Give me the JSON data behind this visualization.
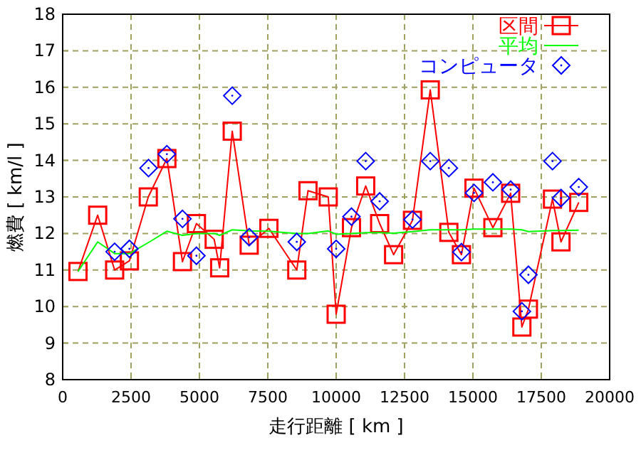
{
  "chart_data": {
    "type": "line",
    "xlabel": "走行距離 [ km ]",
    "ylabel": "燃費 [ km/l ]",
    "xlim": [
      0,
      20000
    ],
    "xticks": [
      0,
      2500,
      5000,
      7500,
      10000,
      12500,
      15000,
      17500,
      20000
    ],
    "ylim": [
      8,
      18
    ],
    "yticks": [
      8,
      9,
      10,
      11,
      12,
      13,
      14,
      15,
      16,
      17,
      18
    ],
    "grid": true,
    "legend": "top right",
    "series": [
      {
        "name": "区間",
        "type": "line",
        "marker": "square",
        "color": "#ff0000",
        "x": [
          560,
          1280,
          1900,
          2440,
          3130,
          3810,
          4380,
          4890,
          5540,
          5740,
          6200,
          6820,
          7540,
          8560,
          8970,
          9710,
          10000,
          10560,
          11080,
          11590,
          12100,
          12790,
          13440,
          14120,
          14580,
          15040,
          15730,
          16380,
          16790,
          17030,
          17910,
          18220,
          18870
        ],
        "values": [
          10.96,
          12.5,
          11.0,
          11.25,
          13.0,
          14.05,
          11.23,
          12.27,
          11.84,
          11.06,
          14.8,
          11.68,
          12.14,
          11.0,
          13.17,
          13.0,
          9.79,
          12.16,
          13.3,
          12.27,
          11.42,
          12.36,
          15.93,
          12.03,
          11.42,
          13.24,
          12.16,
          13.1,
          9.44,
          9.93,
          12.94,
          11.77,
          12.85
        ]
      },
      {
        "name": "平均",
        "type": "line",
        "marker": "none",
        "color": "#00ff00",
        "x": [
          560,
          1280,
          1900,
          2440,
          3130,
          3810,
          4380,
          4890,
          5540,
          5740,
          6200,
          6820,
          7540,
          8560,
          8970,
          9710,
          10000,
          10560,
          11080,
          11590,
          12100,
          12790,
          13440,
          14120,
          14580,
          15040,
          15730,
          16380,
          16790,
          17030,
          17910,
          18220,
          18870
        ],
        "values": [
          10.96,
          11.77,
          11.45,
          11.45,
          11.75,
          12.06,
          11.95,
          12.0,
          12.0,
          11.95,
          12.1,
          12.07,
          12.06,
          12.0,
          12.0,
          12.07,
          11.98,
          12.0,
          12.02,
          12.02,
          12.01,
          12.05,
          12.1,
          12.1,
          12.1,
          12.12,
          12.12,
          12.12,
          12.1,
          12.05,
          12.08,
          12.08,
          12.09
        ]
      },
      {
        "name": "コンピュータ",
        "type": "scatter",
        "marker": "diamond",
        "color": "#0000ff",
        "x": [
          1900,
          2440,
          3140,
          3810,
          4380,
          4890,
          6200,
          6820,
          8560,
          10000,
          10560,
          11080,
          11590,
          12790,
          13440,
          14120,
          14580,
          15040,
          15730,
          16380,
          16790,
          17030,
          17910,
          18220,
          18870
        ],
        "values": [
          11.5,
          11.58,
          13.79,
          14.17,
          12.4,
          11.39,
          15.77,
          11.9,
          11.77,
          11.58,
          12.46,
          13.98,
          12.88,
          12.38,
          13.98,
          13.79,
          11.49,
          13.11,
          13.4,
          13.2,
          9.87,
          10.87,
          13.98,
          12.97,
          13.27
        ]
      }
    ]
  }
}
